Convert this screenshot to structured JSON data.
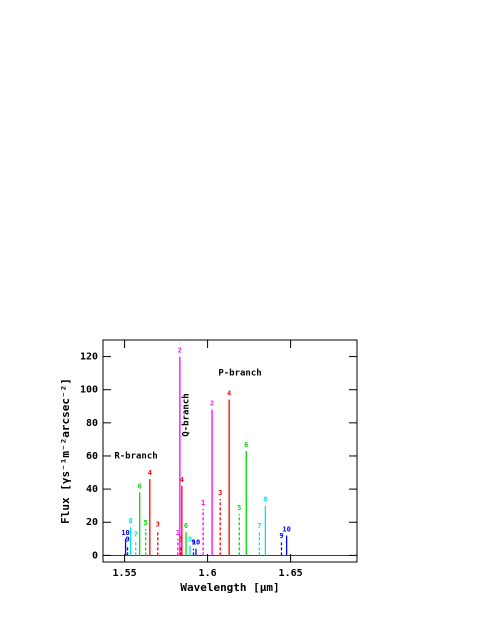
{
  "chart_data": {
    "type": "spectrum",
    "x_label": "Wavelength [μm]",
    "y_label": "Flux [γs⁻¹m⁻²arcsec⁻²]",
    "annotations": [
      "R-branch",
      "Q-branch",
      "P-branch"
    ],
    "x": [
      1.5506,
      1.5518,
      1.5536,
      1.5567,
      1.5591,
      1.5627,
      1.5652,
      1.57,
      1.5821,
      1.5833,
      1.5839,
      1.5845,
      1.587,
      1.5894,
      1.5915,
      1.593,
      1.5973,
      1.6027,
      1.6076,
      1.613,
      1.6191,
      1.6233,
      1.6312,
      1.6348,
      1.6445,
      1.6476
    ],
    "values": [
      10,
      6,
      17,
      9,
      38,
      16,
      46,
      15,
      10,
      120,
      6,
      42,
      14,
      6,
      4,
      4,
      28,
      88,
      34,
      94,
      25,
      63,
      14,
      30,
      8,
      12
    ],
    "line_labels": [
      "10",
      "9",
      "8",
      "7",
      "6",
      "5",
      "4",
      "3",
      "1",
      "2",
      "3",
      "4",
      "6",
      "8",
      "9",
      "10",
      "1",
      "2",
      "3",
      "4",
      "5",
      "6",
      "7",
      "8",
      "9",
      "10"
    ],
    "colors": [
      "#0000ff",
      "#0000ff",
      "#00e5e5",
      "#00e5e5",
      "#00dd00",
      "#00dd00",
      "#ff0000",
      "#ff0000",
      "#ff00ff",
      "#ff00ff",
      "#ff0000",
      "#ff0000",
      "#00dd00",
      "#00e5e5",
      "#0000ff",
      "#0000ff",
      "#ff00ff",
      "#ff00ff",
      "#ff0000",
      "#ff0000",
      "#00dd00",
      "#00dd00",
      "#00e5e5",
      "#00e5e5",
      "#0000ff",
      "#0000ff"
    ],
    "dashed": [
      false,
      true,
      false,
      true,
      false,
      true,
      false,
      true,
      true,
      false,
      true,
      false,
      false,
      false,
      true,
      false,
      true,
      false,
      true,
      false,
      true,
      false,
      true,
      false,
      true,
      false
    ],
    "xlim": [
      1.537,
      1.69
    ],
    "ylim": [
      -4,
      130
    ],
    "xticks": [
      1.55,
      1.6,
      1.65
    ],
    "yticks": [
      0,
      20,
      40,
      60,
      80,
      100,
      120
    ],
    "baseline": 0
  }
}
